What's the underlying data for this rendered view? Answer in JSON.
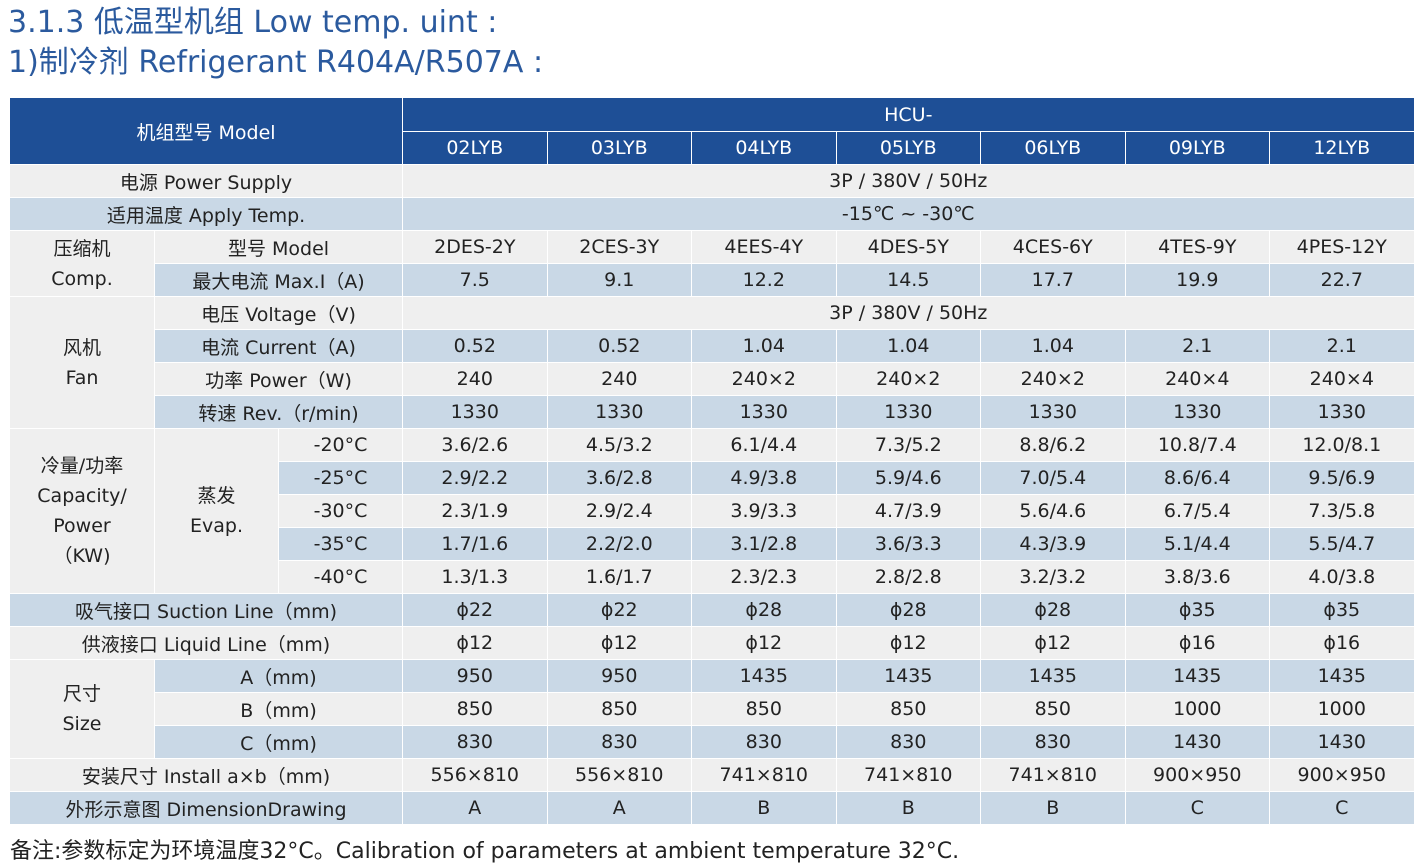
{
  "title_line1": "3.1.3 低温型机组 Low temp. uint :",
  "title_line2": "1)制冷剂 Refrigerant  R404A/R507A :",
  "header": {
    "model_label": "机组型号 Model",
    "prefix": "HCU-",
    "models": [
      "02LYB",
      "03LYB",
      "04LYB",
      "05LYB",
      "06LYB",
      "09LYB",
      "12LYB"
    ]
  },
  "power_supply": {
    "label": "电源 Power Supply",
    "value": "3P / 380V / 50Hz"
  },
  "apply_temp": {
    "label": "适用温度 Apply Temp.",
    "value": "-15℃ ~ -30℃"
  },
  "comp": {
    "group_label": "压缩机\nComp.",
    "model_label": "型号 Model",
    "models": [
      "2DES-2Y",
      "2CES-3Y",
      "4EES-4Y",
      "4DES-5Y",
      "4CES-6Y",
      "4TES-9Y",
      "4PES-12Y"
    ],
    "current_label": "最大电流 Max.I（A)",
    "currents": [
      "7.5",
      "9.1",
      "12.2",
      "14.5",
      "17.7",
      "19.9",
      "22.7"
    ]
  },
  "fan": {
    "group_label": "风机\nFan",
    "voltage_label": "电压 Voltage（V)",
    "voltage_value": "3P / 380V / 50Hz",
    "current_label": "电流 Current（A)",
    "currents": [
      "0.52",
      "0.52",
      "1.04",
      "1.04",
      "1.04",
      "2.1",
      "2.1"
    ],
    "power_label": "功率 Power（W)",
    "powers": [
      "240",
      "240",
      "240×2",
      "240×2",
      "240×2",
      "240×4",
      "240×4"
    ],
    "rev_label": "转速 Rev.（r/min)",
    "revs": [
      "1330",
      "1330",
      "1330",
      "1330",
      "1330",
      "1330",
      "1330"
    ]
  },
  "capacity": {
    "group_label": "冷量/功率\nCapacity/\nPower\n（KW)",
    "evap_label": "蒸发\nEvap.",
    "rows": [
      {
        "temp": "-20°C",
        "values": [
          "3.6/2.6",
          "4.5/3.2",
          "6.1/4.4",
          "7.3/5.2",
          "8.8/6.2",
          "10.8/7.4",
          "12.0/8.1"
        ]
      },
      {
        "temp": "-25°C",
        "values": [
          "2.9/2.2",
          "3.6/2.8",
          "4.9/3.8",
          "5.9/4.6",
          "7.0/5.4",
          "8.6/6.4",
          "9.5/6.9"
        ]
      },
      {
        "temp": "-30°C",
        "values": [
          "2.3/1.9",
          "2.9/2.4",
          "3.9/3.3",
          "4.7/3.9",
          "5.6/4.6",
          "6.7/5.4",
          "7.3/5.8"
        ]
      },
      {
        "temp": "-35°C",
        "values": [
          "1.7/1.6",
          "2.2/2.0",
          "3.1/2.8",
          "3.6/3.3",
          "4.3/3.9",
          "5.1/4.4",
          "5.5/4.7"
        ]
      },
      {
        "temp": "-40°C",
        "values": [
          "1.3/1.3",
          "1.6/1.7",
          "2.3/2.3",
          "2.8/2.8",
          "3.2/3.2",
          "3.8/3.6",
          "4.0/3.8"
        ]
      }
    ]
  },
  "suction": {
    "label": "吸气接口 Suction Line（mm)",
    "values": [
      "ɸ22",
      "ɸ22",
      "ɸ28",
      "ɸ28",
      "ɸ28",
      "ɸ35",
      "ɸ35"
    ]
  },
  "liquid": {
    "label": "供液接口 Liquid Line（mm)",
    "values": [
      "ɸ12",
      "ɸ12",
      "ɸ12",
      "ɸ12",
      "ɸ12",
      "ɸ16",
      "ɸ16"
    ]
  },
  "size": {
    "group_label": "尺寸\nSize",
    "a_label": "A（mm)",
    "a": [
      "950",
      "950",
      "1435",
      "1435",
      "1435",
      "1435",
      "1435"
    ],
    "b_label": "B（mm)",
    "b": [
      "850",
      "850",
      "850",
      "850",
      "850",
      "1000",
      "1000"
    ],
    "c_label": "C（mm)",
    "c": [
      "830",
      "830",
      "830",
      "830",
      "830",
      "1430",
      "1430"
    ]
  },
  "install": {
    "label": "安装尺寸  Install   a×b（mm)",
    "values": [
      "556×810",
      "556×810",
      "741×810",
      "741×810",
      "741×810",
      "900×950",
      "900×950"
    ]
  },
  "drawing": {
    "label": "外形示意图 DimensionDrawing",
    "values": [
      "A",
      "A",
      "B",
      "B",
      "B",
      "C",
      "C"
    ]
  },
  "note": "备注:参数标定为环境温度32°C。Calibration of parameters at ambient temperature 32°C.",
  "colors": {
    "title": "#2b5a9e",
    "header_bg": "#1e4f96",
    "alt_row": "#c9d8e6",
    "row": "#efefef"
  }
}
